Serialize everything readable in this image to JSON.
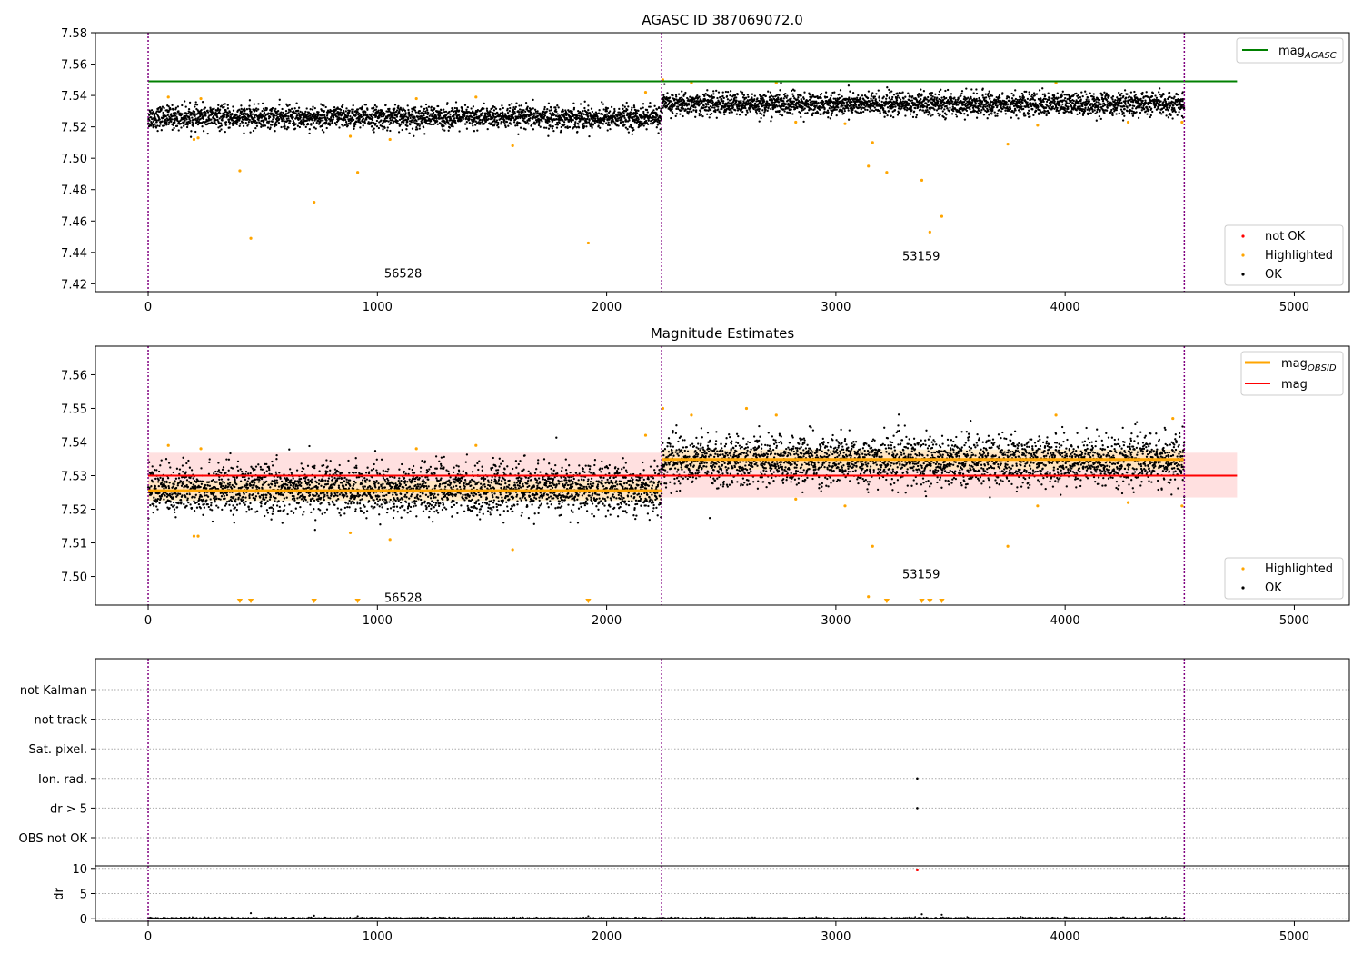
{
  "colors": {
    "ok": "#000000",
    "highlighted": "#ffa500",
    "not_ok": "#ff0000",
    "mag_agasc": "#008000",
    "mag_obsid": "#ffa500",
    "mag": "#ff0000",
    "band": "#ffdddd",
    "boundary": "#800080"
  },
  "chart_data": [
    {
      "type": "scatter",
      "title": "AGASC ID 387069072.0",
      "xlabel": "",
      "ylabel": "",
      "xlim": [
        -230,
        5240
      ],
      "ylim": [
        7.415,
        7.58
      ],
      "xticks": [
        0,
        1000,
        2000,
        3000,
        4000,
        5000
      ],
      "yticks": [
        7.42,
        7.44,
        7.46,
        7.48,
        7.5,
        7.52,
        7.54,
        7.56,
        7.58
      ],
      "ytick_labels": [
        "7.42",
        "7.44",
        "7.46",
        "7.48",
        "7.50",
        "7.52",
        "7.54",
        "7.56",
        "7.58"
      ],
      "grid": false,
      "obs_boundaries": [
        0,
        2240,
        4520
      ],
      "mag_agasc": {
        "value": 7.549,
        "x_range": [
          0,
          4750
        ],
        "legend": "mag",
        "legend_sub": "AGASC"
      },
      "segments": [
        {
          "obsid_label": "56528",
          "label_x": 1030,
          "label_y": 7.424,
          "x_range": [
            0,
            2240
          ],
          "center": 7.526,
          "spread": 0.0085
        },
        {
          "obsid_label": "53159",
          "label_x": 3290,
          "label_y": 7.435,
          "x_range": [
            2240,
            4520
          ],
          "center": 7.5345,
          "spread": 0.0085
        }
      ],
      "highlighted_points": [
        [
          88,
          7.539
        ],
        [
          200,
          7.512
        ],
        [
          218,
          7.513
        ],
        [
          230,
          7.538
        ],
        [
          400,
          7.492
        ],
        [
          448,
          7.449
        ],
        [
          724,
          7.472
        ],
        [
          882,
          7.514
        ],
        [
          914,
          7.491
        ],
        [
          1055,
          7.512
        ],
        [
          1170,
          7.538
        ],
        [
          1430,
          7.539
        ],
        [
          1590,
          7.508
        ],
        [
          1920,
          7.446
        ],
        [
          2170,
          7.542
        ],
        [
          2245,
          7.55
        ],
        [
          2370,
          7.548
        ],
        [
          2740,
          7.548
        ],
        [
          2825,
          7.523
        ],
        [
          3040,
          7.522
        ],
        [
          3142,
          7.495
        ],
        [
          3160,
          7.51
        ],
        [
          3222,
          7.491
        ],
        [
          3375,
          7.486
        ],
        [
          3410,
          7.453
        ],
        [
          3462,
          7.463
        ],
        [
          3750,
          7.509
        ],
        [
          3880,
          7.521
        ],
        [
          3960,
          7.548
        ],
        [
          4275,
          7.523
        ],
        [
          4510,
          7.523
        ]
      ],
      "legend_ok_group": [
        "not OK",
        "Highlighted",
        "OK"
      ]
    },
    {
      "type": "scatter",
      "title": "Magnitude Estimates",
      "xlabel": "",
      "ylabel": "",
      "xlim": [
        -230,
        5240
      ],
      "ylim": [
        7.4915,
        7.5685
      ],
      "xticks": [
        0,
        1000,
        2000,
        3000,
        4000,
        5000
      ],
      "yticks": [
        7.5,
        7.51,
        7.52,
        7.53,
        7.54,
        7.55,
        7.56
      ],
      "ytick_labels": [
        "7.50",
        "7.51",
        "7.52",
        "7.53",
        "7.54",
        "7.55",
        "7.56"
      ],
      "grid": false,
      "obs_boundaries": [
        0,
        2240,
        4520
      ],
      "mag": {
        "value": 7.53,
        "x_range": [
          0,
          4750
        ],
        "legend": "mag",
        "band": [
          7.5235,
          7.5368
        ]
      },
      "mag_obsid": [
        {
          "value": 7.5255,
          "x_range": [
            0,
            2240
          ]
        },
        {
          "value": 7.5348,
          "x_range": [
            2240,
            4520
          ]
        }
      ],
      "mag_obsid_legend": "mag",
      "mag_obsid_legend_sub": "OBSID",
      "segments": [
        {
          "obsid_label": "56528",
          "label_x": 1030,
          "label_y": 7.4925,
          "x_range": [
            0,
            2240
          ],
          "center": 7.526,
          "spread": 0.0085
        },
        {
          "obsid_label": "53159",
          "label_x": 3290,
          "label_y": 7.4995,
          "x_range": [
            2240,
            4520
          ],
          "center": 7.5345,
          "spread": 0.0085
        }
      ],
      "highlighted_points": [
        [
          88,
          7.539
        ],
        [
          200,
          7.512
        ],
        [
          218,
          7.512
        ],
        [
          230,
          7.538
        ],
        [
          882,
          7.513
        ],
        [
          1055,
          7.511
        ],
        [
          1170,
          7.538
        ],
        [
          1430,
          7.539
        ],
        [
          1590,
          7.508
        ],
        [
          2170,
          7.542
        ],
        [
          2245,
          7.55
        ],
        [
          2370,
          7.548
        ],
        [
          2610,
          7.55
        ],
        [
          2740,
          7.548
        ],
        [
          2825,
          7.523
        ],
        [
          3040,
          7.521
        ],
        [
          3142,
          7.494
        ],
        [
          3160,
          7.509
        ],
        [
          3750,
          7.509
        ],
        [
          3880,
          7.521
        ],
        [
          3960,
          7.548
        ],
        [
          4275,
          7.522
        ],
        [
          4470,
          7.547
        ],
        [
          4510,
          7.521
        ]
      ],
      "below_range_markers": [
        400,
        448,
        724,
        914,
        1920,
        3222,
        3375,
        3410,
        3462
      ],
      "legend_ok_group": [
        "Highlighted",
        "OK"
      ]
    },
    {
      "type": "scatter",
      "title": "",
      "xlabel": "",
      "xlim": [
        -230,
        5240
      ],
      "xticks": [
        0,
        1000,
        2000,
        3000,
        4000,
        5000
      ],
      "obs_boundaries": [
        0,
        2240,
        4520
      ],
      "flag_rows": [
        "not Kalman",
        "not track",
        "Sat. pixel.",
        "Ion. rad.",
        "dr > 5",
        "OBS not OK"
      ],
      "flag_points": [
        {
          "row": "Ion. rad.",
          "x": 3355
        },
        {
          "row": "dr > 5",
          "x": 3355
        }
      ],
      "dr_panel": {
        "ylabel": "dr",
        "ylim": [
          -0.5,
          10.5
        ],
        "yticks": [
          0,
          5,
          10
        ],
        "ytick_labels": [
          "0",
          "5",
          "10"
        ],
        "outlier": {
          "x": 3355,
          "y": 9.7
        },
        "spikes": [
          [
            448,
            1.1
          ],
          [
            724,
            0.6
          ],
          [
            914,
            0.5
          ],
          [
            1920,
            0.5
          ],
          [
            3375,
            0.9
          ],
          [
            3462,
            0.8
          ]
        ]
      }
    }
  ]
}
